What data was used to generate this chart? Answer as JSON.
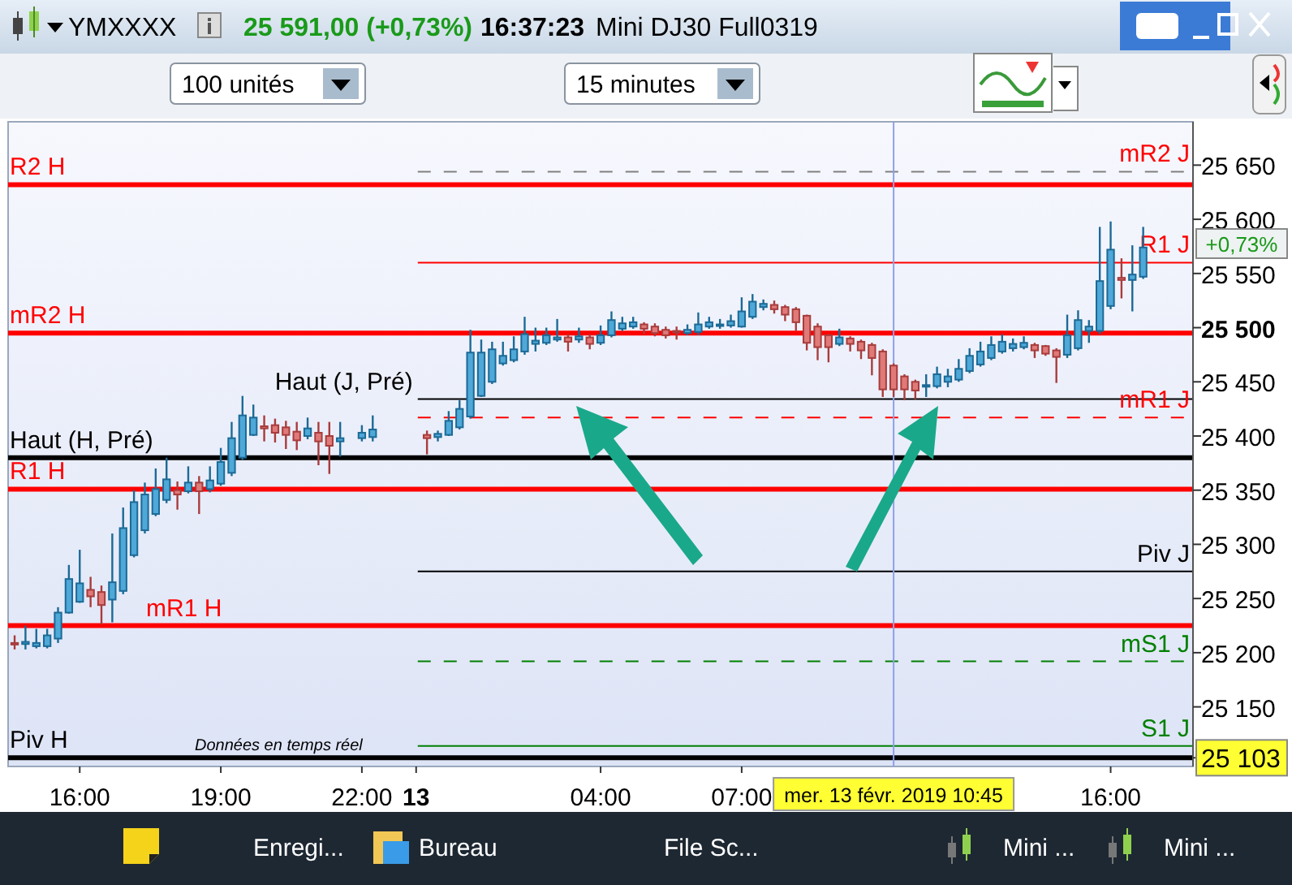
{
  "chart_data": {
    "type": "candlestick",
    "categories": [
      null,
      null,
      null,
      null,
      null,
      null,
      "16:00",
      null,
      null,
      null,
      null,
      null,
      null,
      null,
      null,
      null,
      null,
      null,
      null,
      "19:00",
      null,
      null,
      null,
      null,
      null,
      null,
      null,
      null,
      null,
      null,
      null,
      null,
      "22:00",
      null,
      null,
      null,
      null,
      "13",
      null,
      null,
      null,
      null,
      null,
      null,
      null,
      null,
      null,
      null,
      null,
      null,
      null,
      null,
      null,
      null,
      "04:00",
      null,
      null,
      null,
      null,
      null,
      null,
      null,
      null,
      null,
      null,
      null,
      null,
      "07:00",
      null,
      null,
      null,
      null,
      null,
      null,
      null,
      null,
      null,
      null,
      null,
      null,
      null,
      "mer. 13 févr. 2019 10:45",
      null,
      null,
      null,
      null,
      null,
      null,
      null,
      null,
      null,
      null,
      null,
      null,
      null,
      null,
      null,
      null,
      null,
      null,
      null,
      "16:00",
      null,
      null,
      null
    ],
    "ohlc": [
      [
        25209,
        25216,
        25203,
        25208
      ],
      [
        25208,
        25225,
        25203,
        25210
      ],
      [
        25206,
        25222,
        25204,
        25209
      ],
      [
        25206,
        25222,
        25204,
        25216
      ],
      [
        25213,
        25242,
        25209,
        25237
      ],
      [
        25237,
        25281,
        25236,
        25268
      ],
      [
        25247,
        25295,
        25246,
        25264
      ],
      [
        25258,
        25270,
        25242,
        25252
      ],
      [
        25256,
        25262,
        25226,
        25244
      ],
      [
        25249,
        25310,
        25228,
        25265
      ],
      [
        25257,
        25334,
        25254,
        25315
      ],
      [
        25290,
        25350,
        25288,
        25339
      ],
      [
        25313,
        25357,
        25310,
        25346
      ],
      [
        25328,
        25370,
        25326,
        25351
      ],
      [
        25341,
        25380,
        25338,
        25360
      ],
      [
        25350,
        25358,
        25332,
        25346
      ],
      [
        25349,
        25372,
        25347,
        25357
      ],
      [
        25357,
        25363,
        25328,
        25349
      ],
      [
        25351,
        25372,
        25348,
        25359
      ],
      [
        25356,
        25389,
        25354,
        25376
      ],
      [
        25366,
        25413,
        25363,
        25398
      ],
      [
        25380,
        25437,
        25378,
        25419
      ],
      [
        25401,
        25429,
        25400,
        25417
      ],
      [
        25409,
        25419,
        25395,
        25407
      ],
      [
        25410,
        25416,
        25394,
        25403
      ],
      [
        25408,
        25414,
        25388,
        25401
      ],
      [
        25404,
        25413,
        25387,
        25396
      ],
      [
        25400,
        25417,
        25397,
        25407
      ],
      [
        25403,
        25413,
        25373,
        25395
      ],
      [
        25400,
        25413,
        25365,
        25391
      ],
      [
        25395,
        25413,
        25381,
        25398
      ],
      null,
      [
        25398,
        25410,
        25395,
        25403
      ],
      [
        25399,
        25419,
        25395,
        25406
      ],
      null,
      null,
      null,
      null,
      [
        25401,
        25405,
        25383,
        25398
      ],
      [
        25399,
        25405,
        25395,
        25402
      ],
      [
        25401,
        25423,
        25400,
        25414
      ],
      [
        25408,
        25433,
        25406,
        25425
      ],
      [
        25418,
        25498,
        25416,
        25477
      ],
      [
        25437,
        25489,
        25436,
        25477
      ],
      [
        25450,
        25487,
        25448,
        25480
      ],
      [
        25467,
        25487,
        25465,
        25474
      ],
      [
        25470,
        25492,
        25468,
        25480
      ],
      [
        25478,
        25510,
        25475,
        25494
      ],
      [
        25485,
        25500,
        25478,
        25488
      ],
      [
        25486,
        25500,
        25484,
        25493
      ],
      [
        25489,
        25508,
        25487,
        25491
      ],
      [
        25491,
        25494,
        25478,
        25487
      ],
      [
        25489,
        25500,
        25486,
        25492
      ],
      [
        25491,
        25494,
        25480,
        25485
      ],
      [
        25486,
        25502,
        25484,
        25493
      ],
      [
        25493,
        25515,
        25491,
        25507
      ],
      [
        25499,
        25510,
        25497,
        25504
      ],
      [
        25501,
        25510,
        25499,
        25505
      ],
      [
        25503,
        25505,
        25494,
        25499
      ],
      [
        25501,
        25504,
        25492,
        25495
      ],
      [
        25498,
        25501,
        25490,
        25493
      ],
      [
        25497,
        25501,
        25489,
        25496
      ],
      [
        25495,
        25503,
        25493,
        25498
      ],
      [
        25496,
        25514,
        25493,
        25503
      ],
      [
        25501,
        25510,
        25499,
        25505
      ],
      [
        25502,
        25508,
        25499,
        25503
      ],
      [
        25502,
        25512,
        25500,
        25506
      ],
      [
        25501,
        25528,
        25500,
        25515
      ],
      [
        25510,
        25531,
        25508,
        25524
      ],
      [
        25519,
        25526,
        25516,
        25522
      ],
      [
        25521,
        25525,
        25513,
        25517
      ],
      [
        25519,
        25521,
        25506,
        25512
      ],
      [
        25517,
        25519,
        25497,
        25505
      ],
      [
        25511,
        25512,
        25479,
        25486
      ],
      [
        25501,
        25504,
        25470,
        25482
      ],
      [
        25493,
        25494,
        25468,
        25482
      ],
      [
        25485,
        25499,
        25483,
        25491
      ],
      [
        25490,
        25492,
        25478,
        25485
      ],
      [
        25487,
        25489,
        25471,
        25479
      ],
      [
        25484,
        25486,
        25456,
        25472
      ],
      [
        25478,
        25480,
        25436,
        25443
      ],
      [
        25465,
        25467,
        25436,
        25443
      ],
      [
        25455,
        25457,
        25433,
        25443
      ],
      [
        25450,
        25452,
        25434,
        25442
      ],
      [
        25446,
        25457,
        25436,
        25447
      ],
      [
        25446,
        25464,
        25444,
        25457
      ],
      [
        25450,
        25462,
        25445,
        25455
      ],
      [
        25452,
        25471,
        25450,
        25462
      ],
      [
        25460,
        25481,
        25458,
        25474
      ],
      [
        25466,
        25487,
        25464,
        25478
      ],
      [
        25472,
        25492,
        25470,
        25484
      ],
      [
        25478,
        25494,
        25476,
        25487
      ],
      [
        25481,
        25490,
        25478,
        25485
      ],
      [
        25482,
        25492,
        25480,
        25486
      ],
      [
        25484,
        25486,
        25472,
        25479
      ],
      [
        25483,
        25484,
        25474,
        25476
      ],
      [
        25479,
        25481,
        25449,
        25473
      ],
      [
        25475,
        25512,
        25472,
        25493
      ],
      [
        25481,
        25516,
        25479,
        25507
      ],
      [
        25497,
        25507,
        25486,
        25501
      ],
      [
        25497,
        25593,
        25494,
        25543
      ],
      [
        25520,
        25598,
        25517,
        25572
      ],
      [
        25546,
        25564,
        25527,
        25544
      ],
      [
        25544,
        25576,
        25515,
        25549
      ],
      [
        25547,
        25593,
        25545,
        25574
      ]
    ],
    "ylim": [
      25095,
      25690
    ],
    "yticks": [
      {
        "value": 25103,
        "label": "25 103"
      },
      {
        "value": 25150,
        "label": "25 150"
      },
      {
        "value": 25200,
        "label": "25 200"
      },
      {
        "value": 25250,
        "label": "25 250"
      },
      {
        "value": 25300,
        "label": "25 300"
      },
      {
        "value": 25350,
        "label": "25 350"
      },
      {
        "value": 25400,
        "label": "25 400"
      },
      {
        "value": 25450,
        "label": "25 450"
      },
      {
        "value": 25500,
        "label": "25 500"
      },
      {
        "value": 25550,
        "label": "25 550"
      },
      {
        "value": 25600,
        "label": "25 600"
      },
      {
        "value": 25650,
        "label": "25 650"
      }
    ],
    "grid": false,
    "ref_lines": [
      {
        "axis": "y",
        "value": 25632,
        "label": "R2 H",
        "color": "#ff0000"
      },
      {
        "axis": "y",
        "value": 25644,
        "label": "mR2 J",
        "color": "#808080",
        "line_style": "dashed"
      },
      {
        "axis": "y",
        "value": 25560,
        "label": "R1 J",
        "color": "#ff0000"
      },
      {
        "axis": "y",
        "value": 25495,
        "label": "mR2 H",
        "color": "#ff0000"
      },
      {
        "axis": "y",
        "value": 25434,
        "label": "Haut (J, Pré)",
        "color": "#000000"
      },
      {
        "axis": "y",
        "value": 25417,
        "label": "mR1 J",
        "color": "#ff0000",
        "line_style": "dashed"
      },
      {
        "axis": "y",
        "value": 25380,
        "label": "Haut (H, Pré)",
        "color": "#000000"
      },
      {
        "axis": "y",
        "value": 25351,
        "label": "R1 H",
        "color": "#ff0000"
      },
      {
        "axis": "y",
        "value": 25275,
        "label": "Piv J",
        "color": "#000000"
      },
      {
        "axis": "y",
        "value": 25225,
        "label": "mR1 H",
        "color": "#ff0000"
      },
      {
        "axis": "y",
        "value": 25192,
        "label": "mS1 J",
        "color": "#008000",
        "line_style": "dashed"
      },
      {
        "axis": "y",
        "value": 25114,
        "label": "S1 J",
        "color": "#008000"
      },
      {
        "axis": "y",
        "value": 25103,
        "label": "Piv H",
        "color": "#000000"
      },
      {
        "axis": "x",
        "value": "mer. 13 févr. 2019 10:45",
        "label": null,
        "color": "#8fa0e8"
      }
    ],
    "annotations": [
      "YMXXXX",
      "25 591,00 (+0,73%)",
      "16:37:23",
      "Mini DJ30 Full0319",
      "100 unités",
      "15 minutes",
      "Données en temps réel",
      "Enregi...",
      "Bureau",
      "File Sc...",
      "Mini ...",
      "Mini ...",
      "+0,73%"
    ]
  }
}
